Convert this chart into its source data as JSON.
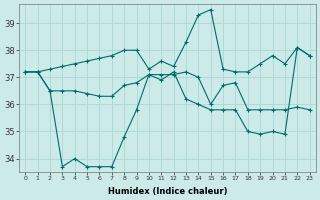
{
  "xlabel": "Humidex (Indice chaleur)",
  "background_color": "#cceae8",
  "grid_color": "#aad8d5",
  "line_color": "#006b6b",
  "xlim": [
    -0.5,
    23.5
  ],
  "ylim": [
    33.5,
    39.7
  ],
  "yticks": [
    34,
    35,
    36,
    37,
    38,
    39
  ],
  "xticks": [
    0,
    1,
    2,
    3,
    4,
    5,
    6,
    7,
    8,
    9,
    10,
    11,
    12,
    13,
    14,
    15,
    16,
    17,
    18,
    19,
    20,
    21,
    22,
    23
  ],
  "line1": [
    37.2,
    37.2,
    37.3,
    37.4,
    37.5,
    37.6,
    37.7,
    37.8,
    38.0,
    38.0,
    37.3,
    37.6,
    37.4,
    38.3,
    39.3,
    39.5,
    37.3,
    37.2,
    37.2,
    37.5,
    37.8,
    37.5,
    38.1,
    37.8
  ],
  "line2": [
    37.2,
    37.2,
    36.5,
    36.5,
    36.5,
    36.4,
    36.3,
    36.3,
    36.7,
    36.8,
    37.1,
    37.1,
    37.1,
    37.2,
    37.0,
    36.0,
    36.7,
    36.8,
    35.8,
    35.8,
    35.8,
    35.8,
    35.9,
    35.8
  ],
  "line3": [
    37.2,
    37.2,
    36.5,
    33.7,
    34.0,
    33.7,
    33.7,
    33.7,
    34.8,
    35.8,
    37.1,
    36.9,
    37.2,
    36.2,
    36.0,
    35.8,
    35.8,
    35.8,
    35.0,
    34.9,
    35.0,
    34.9,
    38.1,
    37.8
  ]
}
